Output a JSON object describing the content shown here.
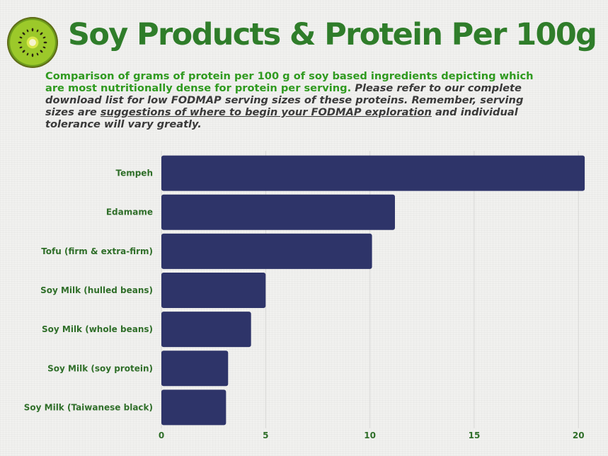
{
  "header": {
    "title": "Soy Products & Protein Per 100g",
    "subtitle_green": "Comparison of grams of protein per 100 g of soy based ingredients depicting which are most nutritionally dense for protein per serving.",
    "subtitle_note_1": " Please refer to our complete download list for low FODMAP serving sizes of these proteins. Remember, serving sizes are ",
    "subtitle_note_underlined": "suggestions of where to begin your FODMAP exploration",
    "subtitle_note_2": " and individual tolerance will vary greatly."
  },
  "logo": {
    "icon": "kiwi-slice-icon"
  },
  "colors": {
    "bar": "#2e3469",
    "title": "#2f7d2a",
    "label": "#2f6e29",
    "grid": "#d8d8d6"
  },
  "chart_data": {
    "type": "bar",
    "orientation": "horizontal",
    "categories": [
      "Tempeh",
      "Edamame",
      "Tofu (firm & extra-firm)",
      "Soy Milk (hulled beans)",
      "Soy Milk (whole beans)",
      "Soy Milk (soy protein)",
      "Soy Milk (Taiwanese black)"
    ],
    "values": [
      20.3,
      11.2,
      10.1,
      5.0,
      4.3,
      3.2,
      3.1
    ],
    "xlim": [
      0,
      20.5
    ],
    "xticks": [
      0,
      5,
      10,
      15,
      20
    ],
    "grid": "vertical",
    "title": "Soy Products & Protein Per 100g",
    "xlabel": "",
    "ylabel": ""
  }
}
